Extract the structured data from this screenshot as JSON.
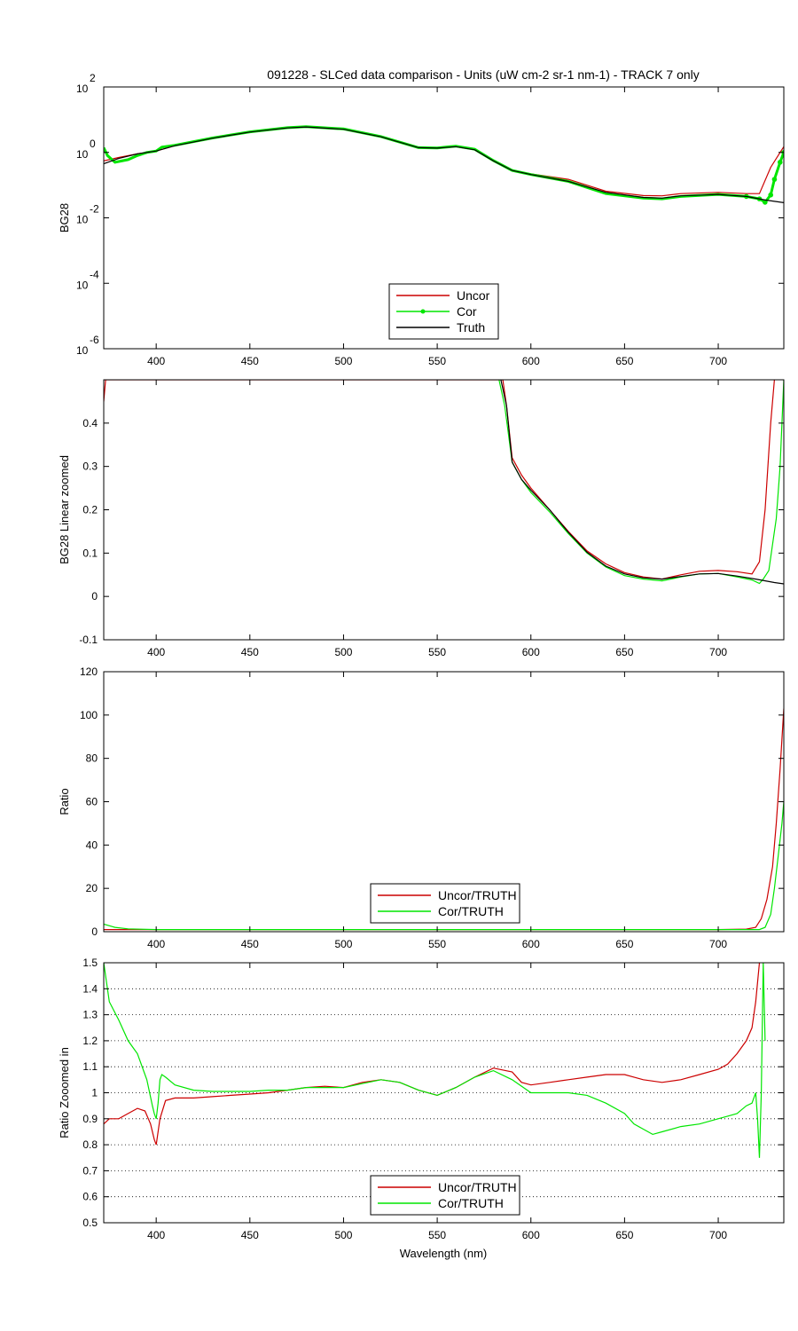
{
  "figure": {
    "title": "091228 - SLCed data comparison - Units (uW cm-2 sr-1 nm-1) - TRACK 7 only",
    "xlabel": "Wavelength (nm)",
    "colors": {
      "uncor": "#cc0000",
      "cor": "#00e600",
      "truth": "#000000"
    }
  },
  "chart_data": [
    {
      "type": "line",
      "id": "bg28-log",
      "ylabel": "BG28",
      "yscale": "log",
      "xlim": [
        372,
        735
      ],
      "ylim": [
        1e-06,
        100
      ],
      "xticks": [
        400,
        450,
        500,
        550,
        600,
        650,
        700
      ],
      "yticks": [
        {
          "base": "10",
          "exp": "-6",
          "value": 1e-06
        },
        {
          "base": "10",
          "exp": "-4",
          "value": 0.0001
        },
        {
          "base": "10",
          "exp": "-2",
          "value": 0.01
        },
        {
          "base": "10",
          "exp": "0",
          "value": 1
        },
        {
          "base": "10",
          "exp": "2",
          "value": 100
        }
      ],
      "legend": {
        "location": "lower-center",
        "entries": [
          "Uncor",
          "Cor",
          "Truth"
        ]
      },
      "series": [
        {
          "name": "Uncor",
          "color_key": "uncor",
          "marker": "none",
          "x": [
            372,
            380,
            390,
            400,
            410,
            430,
            450,
            470,
            480,
            500,
            520,
            540,
            550,
            560,
            570,
            580,
            590,
            600,
            620,
            640,
            660,
            670,
            680,
            700,
            715,
            722,
            728,
            733,
            735
          ],
          "y": [
            0.55,
            0.7,
            0.9,
            1.1,
            1.6,
            2.7,
            4.2,
            5.6,
            6.0,
            5.1,
            3.0,
            1.4,
            1.35,
            1.5,
            1.2,
            0.55,
            0.28,
            0.22,
            0.15,
            0.065,
            0.048,
            0.047,
            0.055,
            0.06,
            0.055,
            0.055,
            0.35,
            1.0,
            1.5
          ]
        },
        {
          "name": "Cor",
          "color_key": "cor",
          "marker": "dot",
          "x": [
            372,
            374,
            378,
            385,
            390,
            395,
            400,
            403,
            410,
            430,
            450,
            470,
            480,
            500,
            520,
            540,
            550,
            560,
            570,
            580,
            590,
            600,
            620,
            640,
            660,
            670,
            680,
            700,
            715,
            722,
            725,
            728,
            730,
            733,
            735
          ],
          "y": [
            1.4,
            0.8,
            0.5,
            0.6,
            0.8,
            1.0,
            1.1,
            1.45,
            1.65,
            2.75,
            4.25,
            5.7,
            6.1,
            5.2,
            3.05,
            1.4,
            1.37,
            1.55,
            1.25,
            0.56,
            0.28,
            0.21,
            0.13,
            0.055,
            0.04,
            0.038,
            0.045,
            0.052,
            0.045,
            0.038,
            0.03,
            0.05,
            0.15,
            0.5,
            1.0
          ]
        },
        {
          "name": "Truth",
          "color_key": "truth",
          "marker": "none",
          "x": [
            372,
            380,
            390,
            400,
            410,
            430,
            450,
            470,
            480,
            500,
            520,
            540,
            550,
            560,
            570,
            580,
            590,
            600,
            620,
            640,
            660,
            670,
            680,
            700,
            715,
            725,
            735
          ],
          "y": [
            0.45,
            0.65,
            0.9,
            1.1,
            1.6,
            2.7,
            4.2,
            5.6,
            6.0,
            5.1,
            3.0,
            1.4,
            1.35,
            1.5,
            1.2,
            0.55,
            0.28,
            0.21,
            0.13,
            0.06,
            0.042,
            0.04,
            0.047,
            0.052,
            0.045,
            0.035,
            0.029
          ]
        }
      ]
    },
    {
      "type": "line",
      "id": "bg28-linear",
      "ylabel": "BG28 Linear zoomed",
      "yscale": "linear",
      "xlim": [
        372,
        735
      ],
      "ylim": [
        -0.1,
        0.5
      ],
      "xticks": [
        400,
        450,
        500,
        550,
        600,
        650,
        700
      ],
      "yticks": [
        -0.1,
        0,
        0.1,
        0.2,
        0.3,
        0.4
      ],
      "ytick_labels": [
        "-0.1",
        "0",
        "0.1",
        "0.2",
        "0.3",
        "0.4"
      ],
      "series": [
        {
          "name": "Uncor",
          "color_key": "uncor",
          "x": [
            372,
            373,
            585,
            587,
            590,
            595,
            600,
            610,
            620,
            630,
            640,
            650,
            660,
            670,
            680,
            690,
            700,
            710,
            718,
            722,
            725,
            728,
            730
          ],
          "y": [
            0.45,
            0.5,
            0.5,
            0.44,
            0.32,
            0.28,
            0.25,
            0.2,
            0.15,
            0.105,
            0.075,
            0.055,
            0.045,
            0.04,
            0.05,
            0.058,
            0.06,
            0.057,
            0.052,
            0.08,
            0.2,
            0.4,
            0.5
          ]
        },
        {
          "name": "Cor",
          "color_key": "cor",
          "x": [
            583,
            586,
            590,
            595,
            600,
            610,
            620,
            630,
            640,
            650,
            660,
            670,
            680,
            690,
            700,
            710,
            718,
            722,
            724,
            727,
            729,
            731,
            733,
            735
          ],
          "y": [
            0.5,
            0.44,
            0.31,
            0.27,
            0.24,
            0.195,
            0.145,
            0.1,
            0.068,
            0.048,
            0.04,
            0.036,
            0.045,
            0.052,
            0.053,
            0.045,
            0.038,
            0.03,
            0.04,
            0.06,
            0.12,
            0.18,
            0.3,
            0.5
          ]
        },
        {
          "name": "Truth",
          "color_key": "truth",
          "x": [
            584,
            587,
            590,
            595,
            600,
            610,
            620,
            630,
            640,
            650,
            660,
            670,
            680,
            690,
            700,
            710,
            720,
            730,
            735
          ],
          "y": [
            0.5,
            0.44,
            0.31,
            0.27,
            0.245,
            0.2,
            0.148,
            0.102,
            0.07,
            0.052,
            0.043,
            0.04,
            0.046,
            0.052,
            0.053,
            0.047,
            0.04,
            0.032,
            0.029
          ]
        }
      ]
    },
    {
      "type": "line",
      "id": "ratio",
      "ylabel": "Ratio",
      "yscale": "linear",
      "xlim": [
        372,
        735
      ],
      "ylim": [
        0,
        120
      ],
      "xticks": [
        400,
        450,
        500,
        550,
        600,
        650,
        700
      ],
      "yticks": [
        0,
        20,
        40,
        60,
        80,
        100,
        120
      ],
      "ytick_labels": [
        "0",
        "20",
        "40",
        "60",
        "80",
        "100",
        "120"
      ],
      "legend": {
        "location": "lower-center",
        "entries": [
          "Uncor/TRUTH",
          "Cor/TRUTH"
        ]
      },
      "series": [
        {
          "name": "Uncor/TRUTH",
          "color_key": "uncor",
          "x": [
            372,
            400,
            600,
            700,
            715,
            720,
            723,
            726,
            729,
            731,
            733,
            735
          ],
          "y": [
            1,
            1,
            1,
            1,
            1.2,
            2,
            6,
            15,
            30,
            50,
            75,
            103
          ]
        },
        {
          "name": "Cor/TRUTH",
          "color_key": "cor",
          "x": [
            372,
            378,
            385,
            400,
            600,
            700,
            722,
            725,
            728,
            730,
            732,
            734,
            735
          ],
          "y": [
            3.5,
            2,
            1.3,
            1,
            1,
            1,
            1,
            2,
            8,
            20,
            35,
            50,
            60
          ]
        }
      ]
    },
    {
      "type": "line",
      "id": "ratio-zoom",
      "ylabel": "Ratio Zooomed in",
      "yscale": "linear",
      "xlim": [
        372,
        735
      ],
      "ylim": [
        0.5,
        1.5
      ],
      "grid": "horizontal-dotted",
      "xticks": [
        400,
        450,
        500,
        550,
        600,
        650,
        700
      ],
      "yticks": [
        0.5,
        0.6,
        0.7,
        0.8,
        0.9,
        1.0,
        1.1,
        1.2,
        1.3,
        1.4,
        1.5
      ],
      "ytick_labels": [
        "0.5",
        "0.6",
        "0.7",
        "0.8",
        "0.9",
        "1",
        "1.1",
        "1.2",
        "1.3",
        "1.4",
        "1.5"
      ],
      "legend": {
        "location": "lower-center",
        "entries": [
          "Uncor/TRUTH",
          "Cor/TRUTH"
        ]
      },
      "series": [
        {
          "name": "Uncor/TRUTH",
          "color_key": "uncor",
          "x": [
            372,
            375,
            380,
            385,
            390,
            394,
            397,
            399,
            400,
            402,
            405,
            410,
            420,
            430,
            440,
            450,
            460,
            470,
            480,
            490,
            500,
            510,
            520,
            530,
            540,
            550,
            560,
            570,
            580,
            590,
            595,
            600,
            610,
            620,
            630,
            640,
            650,
            655,
            660,
            670,
            680,
            690,
            700,
            705,
            710,
            715,
            718,
            720,
            722
          ],
          "y": [
            0.88,
            0.9,
            0.9,
            0.92,
            0.94,
            0.93,
            0.88,
            0.82,
            0.8,
            0.9,
            0.97,
            0.98,
            0.98,
            0.985,
            0.99,
            0.995,
            1.0,
            1.01,
            1.02,
            1.025,
            1.02,
            1.04,
            1.05,
            1.04,
            1.01,
            0.99,
            1.02,
            1.06,
            1.095,
            1.08,
            1.04,
            1.03,
            1.04,
            1.05,
            1.06,
            1.07,
            1.07,
            1.06,
            1.05,
            1.04,
            1.05,
            1.07,
            1.09,
            1.11,
            1.15,
            1.2,
            1.25,
            1.35,
            1.5
          ]
        },
        {
          "name": "Cor/TRUTH",
          "color_key": "cor",
          "x": [
            372,
            375,
            380,
            385,
            390,
            395,
            398,
            399,
            400,
            401,
            402,
            403,
            405,
            410,
            420,
            430,
            440,
            450,
            460,
            470,
            480,
            490,
            500,
            510,
            520,
            530,
            540,
            550,
            560,
            570,
            580,
            590,
            600,
            610,
            620,
            630,
            640,
            650,
            655,
            660,
            665,
            670,
            680,
            690,
            700,
            705,
            710,
            715,
            718,
            720,
            721,
            722,
            723,
            724,
            725
          ],
          "y": [
            1.5,
            1.35,
            1.28,
            1.2,
            1.15,
            1.05,
            0.95,
            0.92,
            0.9,
            0.96,
            1.05,
            1.07,
            1.06,
            1.03,
            1.01,
            1.005,
            1.005,
            1.005,
            1.01,
            1.01,
            1.02,
            1.02,
            1.02,
            1.035,
            1.05,
            1.04,
            1.01,
            0.99,
            1.02,
            1.06,
            1.085,
            1.05,
            1.0,
            1.0,
            1.0,
            0.99,
            0.96,
            0.92,
            0.88,
            0.86,
            0.84,
            0.85,
            0.87,
            0.88,
            0.9,
            0.91,
            0.92,
            0.95,
            0.96,
            1.0,
            0.9,
            0.75,
            1.0,
            1.5,
            1.2
          ]
        }
      ]
    }
  ]
}
